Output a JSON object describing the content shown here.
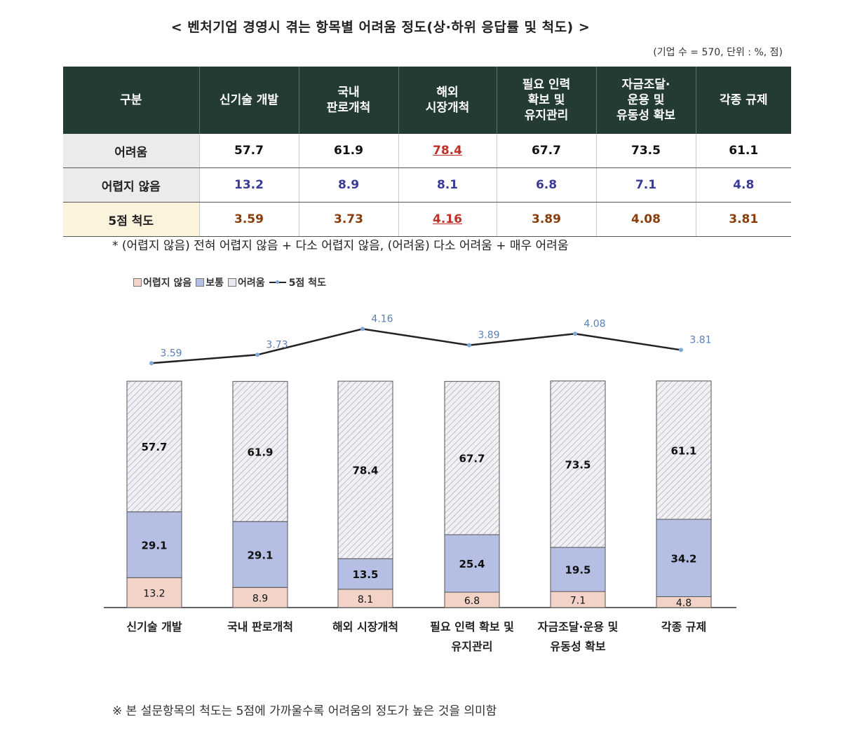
{
  "title": "< 벤처기업 경영시 겪는 항목별 어려움 정도(상·하위 응답률 및 척도) >",
  "unit_note": "(기업 수 = 570, 단위 : %, 점)",
  "table": {
    "corner": "구분",
    "headers": [
      "신기술 개발",
      "국내\n판로개척",
      "해외\n시장개척",
      "필요 인력\n확보 및\n유지관리",
      "자금조달·\n운용 및\n유동성 확보",
      "각종 규제"
    ],
    "rows": [
      {
        "label": "어려움",
        "values": [
          "57.7",
          "61.9",
          "78.4",
          "67.7",
          "73.5",
          "61.1"
        ]
      },
      {
        "label": "어렵지 않음",
        "values": [
          "13.2",
          "8.9",
          "8.1",
          "6.8",
          "7.1",
          "4.8"
        ]
      },
      {
        "label": "5점 척도",
        "values": [
          "3.59",
          "3.73",
          "4.16",
          "3.89",
          "4.08",
          "3.81"
        ]
      }
    ]
  },
  "note": "* (어렵지 않음) 전혀 어렵지 않음 + 다소 어렵지 않음, (어려움) 다소 어려움 + 매우 어려움",
  "footnote": "※ 본 설문항목의 척도는 5점에 가까울수록 어려움의 정도가 높은 것을 의미함",
  "legend": {
    "not_difficult": "어렵지 않음",
    "normal": "보통",
    "difficult": "어려움",
    "scale": "5점 척도"
  },
  "chart_data": {
    "type": "bar",
    "stacked": true,
    "categories": [
      "신기술 개발",
      "국내 판로개척",
      "해외 시장개척",
      "필요 인력 확보 및\n유지관리",
      "자금조달·운용 및\n유동성 확보",
      "각종 규제"
    ],
    "series": [
      {
        "name": "어렵지 않음",
        "values": [
          13.2,
          8.9,
          8.1,
          6.8,
          7.1,
          4.8
        ],
        "color": "#f3d3c8"
      },
      {
        "name": "보통",
        "values": [
          29.1,
          29.1,
          13.5,
          25.4,
          19.5,
          34.2
        ],
        "color": "#b5bfe3"
      },
      {
        "name": "어려움",
        "values": [
          57.7,
          61.9,
          78.4,
          67.7,
          73.5,
          61.1
        ],
        "color": "#e8e8ee"
      }
    ],
    "line": {
      "name": "5점 척도",
      "values": [
        3.59,
        3.73,
        4.16,
        3.89,
        4.08,
        3.81
      ],
      "color": "#222222",
      "marker_color": "#7fa8d8"
    },
    "ylim": [
      0,
      100
    ]
  }
}
